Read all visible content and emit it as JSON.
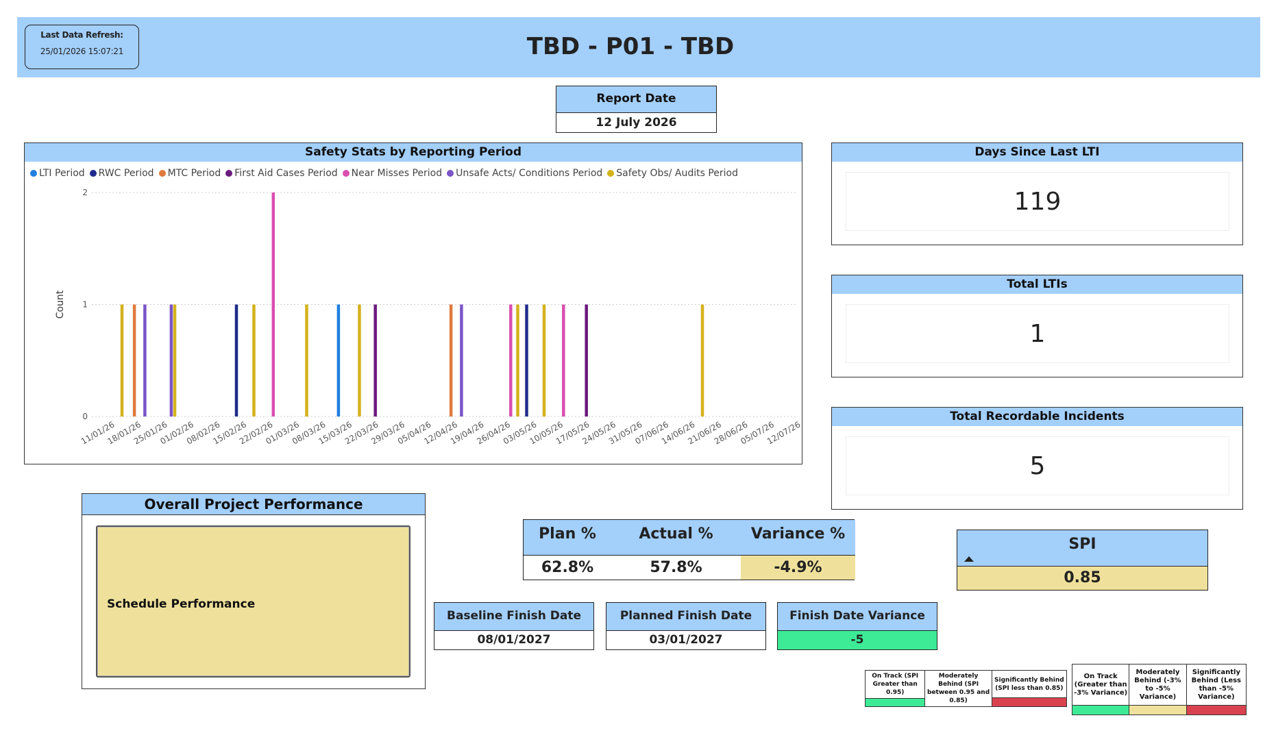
{
  "header": {
    "title": "TBD - P01 - TBD",
    "refresh_label": "Last Data Refresh:",
    "refresh_value": "25/01/2026 15:07:21"
  },
  "report_date": {
    "label": "Report Date",
    "value": "12 July 2026"
  },
  "colors": {
    "header_blue": "#a3cffb",
    "amber": "#efe19b",
    "green": "#3deb96",
    "red": "#d9434f"
  },
  "chart_data": {
    "type": "bar",
    "title": "Safety Stats by Reporting Period",
    "ylabel": "Count",
    "xlabel": "",
    "ylim": [
      0,
      2
    ],
    "yticks": [
      0,
      1,
      2
    ],
    "grid": true,
    "legend_position": "top-left",
    "categories": [
      "11/01/26",
      "18/01/26",
      "25/01/26",
      "01/02/26",
      "08/02/26",
      "15/02/26",
      "22/02/26",
      "01/03/26",
      "08/03/26",
      "15/03/26",
      "22/03/26",
      "29/03/26",
      "05/04/26",
      "12/04/26",
      "19/04/26",
      "26/04/26",
      "03/05/26",
      "10/05/26",
      "17/05/26",
      "24/05/26",
      "31/05/26",
      "07/06/26",
      "14/06/26",
      "21/06/26",
      "28/06/26",
      "05/07/26",
      "12/07/26"
    ],
    "series": [
      {
        "name": "LTI Period",
        "color": "#1f7fe0",
        "values": [
          0,
          0,
          0,
          0,
          0,
          0,
          0,
          0,
          0,
          1,
          0,
          0,
          0,
          0,
          0,
          0,
          0,
          0,
          0,
          0,
          0,
          0,
          0,
          0,
          0,
          0,
          0
        ]
      },
      {
        "name": "RWC Period",
        "color": "#1f2b8c",
        "values": [
          0,
          0,
          0,
          0,
          0,
          1,
          0,
          0,
          0,
          0,
          0,
          0,
          0,
          0,
          0,
          0,
          1,
          0,
          0,
          0,
          0,
          0,
          0,
          0,
          0,
          0,
          0
        ]
      },
      {
        "name": "MTC Period",
        "color": "#e07a3c",
        "values": [
          0,
          1,
          0,
          0,
          0,
          0,
          0,
          0,
          0,
          0,
          0,
          0,
          0,
          1,
          0,
          0,
          0,
          0,
          0,
          0,
          0,
          0,
          0,
          0,
          0,
          0,
          0
        ]
      },
      {
        "name": "First Aid Cases Period",
        "color": "#6b1a7d",
        "values": [
          0,
          0,
          0,
          0,
          0,
          0,
          0,
          0,
          0,
          0,
          1,
          0,
          0,
          0,
          0,
          0,
          0,
          0,
          1,
          0,
          0,
          0,
          0,
          0,
          0,
          0,
          0
        ]
      },
      {
        "name": "Near Misses Period",
        "color": "#d94fae",
        "values": [
          0,
          0,
          0,
          0,
          0,
          0,
          2,
          0,
          0,
          0,
          0,
          0,
          0,
          0,
          0,
          1,
          0,
          1,
          0,
          0,
          0,
          0,
          0,
          0,
          0,
          0,
          0
        ]
      },
      {
        "name": "Unsafe Acts/ Conditions Period",
        "color": "#7b55c7",
        "values": [
          0,
          1,
          1,
          0,
          0,
          0,
          0,
          0,
          0,
          0,
          0,
          0,
          0,
          1,
          0,
          0,
          0,
          0,
          0,
          0,
          0,
          0,
          0,
          0,
          0,
          0,
          0
        ]
      },
      {
        "name": "Safety Obs/ Audits Period",
        "color": "#d4b21c",
        "values": [
          1,
          0,
          1,
          0,
          0,
          1,
          0,
          1,
          0,
          1,
          0,
          0,
          0,
          0,
          0,
          1,
          1,
          0,
          0,
          0,
          0,
          0,
          1,
          0,
          0,
          0,
          0
        ]
      }
    ]
  },
  "kpis": [
    {
      "label": "Days Since Last LTI",
      "value": "119"
    },
    {
      "label": "Total LTIs",
      "value": "1"
    },
    {
      "label": "Total Recordable Incidents",
      "value": "5"
    }
  ],
  "overall": {
    "title": "Overall Project Performance",
    "schedule_label": "Schedule Performance"
  },
  "progress": {
    "plan_label": "Plan %",
    "plan_value": "62.8%",
    "actual_label": "Actual %",
    "actual_value": "57.8%",
    "variance_label": "Variance %",
    "variance_value": "-4.9%"
  },
  "spi": {
    "label": "SPI",
    "value": "0.85",
    "trend_icon": "triangle-up-icon"
  },
  "dates": {
    "baseline_label": "Baseline Finish Date",
    "baseline_value": "08/01/2027",
    "planned_label": "Planned Finish Date",
    "planned_value": "03/01/2027",
    "variance_label": "Finish Date Variance",
    "variance_value": "-5"
  },
  "spi_key": [
    {
      "label": "On Track (SPI Greater than 0.95)",
      "color": "#3deb96"
    },
    {
      "label": "Moderately Behind (SPI between 0.95 and 0.85)",
      "color": "#efe19b"
    },
    {
      "label": "Significantly Behind (SPI less than 0.85)",
      "color": "#d9434f"
    }
  ],
  "variance_key": [
    {
      "label": "On Track (Greater than -3% Variance)",
      "color": "#3deb96"
    },
    {
      "label": "Moderately Behind (-3% to -5% Variance)",
      "color": "#efe19b"
    },
    {
      "label": "Significantly Behind (Less than -5% Variance)",
      "color": "#d9434f"
    }
  ]
}
